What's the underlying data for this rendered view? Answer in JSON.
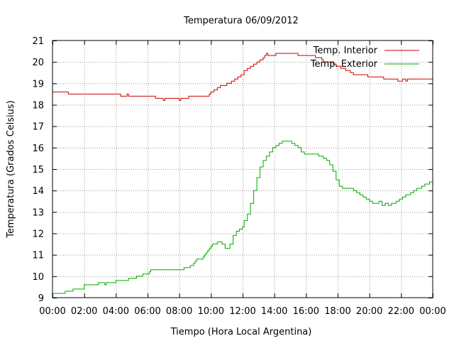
{
  "chart_data": {
    "type": "line",
    "title": "Temperatura 06/09/2012",
    "xlabel": "Tiempo (Hora Local Argentina)",
    "ylabel": "Temperatura (Grados Celsius)",
    "xlim_hours": [
      0,
      24
    ],
    "ylim": [
      9,
      21
    ],
    "xticks": [
      "00:00",
      "02:00",
      "04:00",
      "06:00",
      "08:00",
      "10:00",
      "12:00",
      "14:00",
      "16:00",
      "18:00",
      "20:00",
      "22:00",
      "00:00"
    ],
    "yticks": [
      "9",
      "10",
      "11",
      "12",
      "13",
      "14",
      "15",
      "16",
      "17",
      "18",
      "19",
      "20",
      "21"
    ],
    "grid": true,
    "legend_position": "top-right",
    "series": [
      {
        "name": "Temp. Interior",
        "color": "#cc0000",
        "points": [
          [
            0.0,
            18.6
          ],
          [
            0.9,
            18.6
          ],
          [
            1.0,
            18.5
          ],
          [
            4.2,
            18.5
          ],
          [
            4.3,
            18.4
          ],
          [
            4.6,
            18.4
          ],
          [
            4.7,
            18.5
          ],
          [
            4.8,
            18.4
          ],
          [
            6.4,
            18.4
          ],
          [
            6.5,
            18.3
          ],
          [
            6.9,
            18.3
          ],
          [
            7.0,
            18.2
          ],
          [
            7.1,
            18.3
          ],
          [
            7.9,
            18.3
          ],
          [
            8.0,
            18.2
          ],
          [
            8.1,
            18.3
          ],
          [
            8.5,
            18.3
          ],
          [
            8.6,
            18.4
          ],
          [
            9.8,
            18.4
          ],
          [
            9.9,
            18.5
          ],
          [
            10.0,
            18.6
          ],
          [
            10.2,
            18.7
          ],
          [
            10.4,
            18.8
          ],
          [
            10.6,
            18.9
          ],
          [
            11.0,
            19.0
          ],
          [
            11.3,
            19.1
          ],
          [
            11.5,
            19.2
          ],
          [
            11.7,
            19.3
          ],
          [
            11.9,
            19.4
          ],
          [
            12.1,
            19.6
          ],
          [
            12.3,
            19.7
          ],
          [
            12.5,
            19.8
          ],
          [
            12.7,
            19.9
          ],
          [
            12.9,
            20.0
          ],
          [
            13.1,
            20.1
          ],
          [
            13.3,
            20.2
          ],
          [
            13.4,
            20.3
          ],
          [
            13.5,
            20.4
          ],
          [
            13.6,
            20.3
          ],
          [
            14.0,
            20.3
          ],
          [
            14.1,
            20.4
          ],
          [
            15.4,
            20.4
          ],
          [
            15.5,
            20.3
          ],
          [
            16.5,
            20.3
          ],
          [
            16.6,
            20.2
          ],
          [
            16.9,
            20.2
          ],
          [
            17.0,
            20.1
          ],
          [
            17.1,
            20.0
          ],
          [
            17.6,
            20.0
          ],
          [
            17.7,
            19.9
          ],
          [
            17.9,
            19.8
          ],
          [
            18.2,
            19.7
          ],
          [
            18.5,
            19.6
          ],
          [
            18.8,
            19.5
          ],
          [
            19.0,
            19.4
          ],
          [
            19.8,
            19.4
          ],
          [
            19.9,
            19.3
          ],
          [
            20.8,
            19.3
          ],
          [
            20.9,
            19.2
          ],
          [
            21.7,
            19.2
          ],
          [
            21.8,
            19.1
          ],
          [
            22.0,
            19.1
          ],
          [
            22.1,
            19.2
          ],
          [
            22.3,
            19.1
          ],
          [
            22.4,
            19.2
          ],
          [
            24.0,
            19.2
          ]
        ]
      },
      {
        "name": "Temp. Exterior",
        "color": "#00aa00",
        "points": [
          [
            0.0,
            9.2
          ],
          [
            0.7,
            9.2
          ],
          [
            0.8,
            9.3
          ],
          [
            1.2,
            9.3
          ],
          [
            1.3,
            9.4
          ],
          [
            1.9,
            9.4
          ],
          [
            2.0,
            9.6
          ],
          [
            2.8,
            9.6
          ],
          [
            2.9,
            9.7
          ],
          [
            3.2,
            9.7
          ],
          [
            3.3,
            9.6
          ],
          [
            3.4,
            9.7
          ],
          [
            3.9,
            9.7
          ],
          [
            4.0,
            9.8
          ],
          [
            4.7,
            9.8
          ],
          [
            4.8,
            9.9
          ],
          [
            5.2,
            9.9
          ],
          [
            5.3,
            10.0
          ],
          [
            5.6,
            10.0
          ],
          [
            5.7,
            10.1
          ],
          [
            6.0,
            10.1
          ],
          [
            6.1,
            10.2
          ],
          [
            6.2,
            10.3
          ],
          [
            8.2,
            10.3
          ],
          [
            8.3,
            10.4
          ],
          [
            8.6,
            10.4
          ],
          [
            8.7,
            10.5
          ],
          [
            8.9,
            10.6
          ],
          [
            9.0,
            10.7
          ],
          [
            9.1,
            10.8
          ],
          [
            9.4,
            10.8
          ],
          [
            9.5,
            10.9
          ],
          [
            9.6,
            11.0
          ],
          [
            9.7,
            11.1
          ],
          [
            9.8,
            11.2
          ],
          [
            9.9,
            11.3
          ],
          [
            10.0,
            11.4
          ],
          [
            10.1,
            11.5
          ],
          [
            10.4,
            11.6
          ],
          [
            10.7,
            11.5
          ],
          [
            10.9,
            11.3
          ],
          [
            11.1,
            11.3
          ],
          [
            11.2,
            11.5
          ],
          [
            11.4,
            11.9
          ],
          [
            11.6,
            12.1
          ],
          [
            11.8,
            12.2
          ],
          [
            12.0,
            12.3
          ],
          [
            12.1,
            12.6
          ],
          [
            12.3,
            12.9
          ],
          [
            12.5,
            13.4
          ],
          [
            12.7,
            14.0
          ],
          [
            12.9,
            14.6
          ],
          [
            13.1,
            15.1
          ],
          [
            13.3,
            15.4
          ],
          [
            13.5,
            15.6
          ],
          [
            13.7,
            15.8
          ],
          [
            13.9,
            16.0
          ],
          [
            14.1,
            16.1
          ],
          [
            14.3,
            16.2
          ],
          [
            14.5,
            16.3
          ],
          [
            14.9,
            16.3
          ],
          [
            15.1,
            16.2
          ],
          [
            15.3,
            16.1
          ],
          [
            15.5,
            16.0
          ],
          [
            15.7,
            15.8
          ],
          [
            15.9,
            15.7
          ],
          [
            16.6,
            15.7
          ],
          [
            16.8,
            15.6
          ],
          [
            17.1,
            15.5
          ],
          [
            17.3,
            15.4
          ],
          [
            17.5,
            15.2
          ],
          [
            17.7,
            14.9
          ],
          [
            17.9,
            14.5
          ],
          [
            18.1,
            14.2
          ],
          [
            18.3,
            14.1
          ],
          [
            18.9,
            14.1
          ],
          [
            19.0,
            14.0
          ],
          [
            19.2,
            13.9
          ],
          [
            19.4,
            13.8
          ],
          [
            19.6,
            13.7
          ],
          [
            19.8,
            13.6
          ],
          [
            20.0,
            13.5
          ],
          [
            20.2,
            13.4
          ],
          [
            20.4,
            13.4
          ],
          [
            20.6,
            13.5
          ],
          [
            20.8,
            13.3
          ],
          [
            21.0,
            13.4
          ],
          [
            21.2,
            13.3
          ],
          [
            21.4,
            13.4
          ],
          [
            21.7,
            13.5
          ],
          [
            21.9,
            13.6
          ],
          [
            22.1,
            13.7
          ],
          [
            22.3,
            13.8
          ],
          [
            22.6,
            13.9
          ],
          [
            22.8,
            14.0
          ],
          [
            23.0,
            14.1
          ],
          [
            23.3,
            14.2
          ],
          [
            23.5,
            14.3
          ],
          [
            23.8,
            14.4
          ],
          [
            24.0,
            14.5
          ]
        ]
      }
    ]
  }
}
